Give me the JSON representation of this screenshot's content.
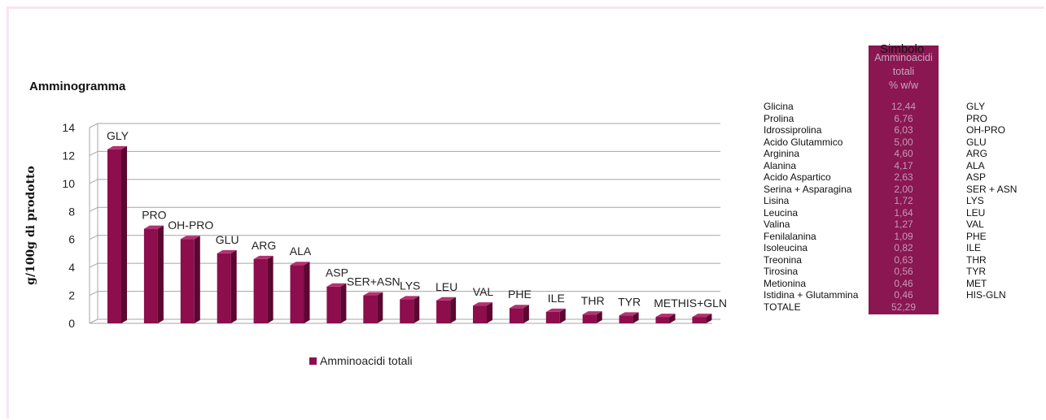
{
  "chart_data": {
    "type": "bar",
    "title": "Amminogramma",
    "ylabel": "g/100g di prodotto",
    "xlabel": "",
    "ylim": [
      0,
      14
    ],
    "yticks": [
      0,
      2,
      4,
      6,
      8,
      10,
      12,
      14
    ],
    "grid": true,
    "legend": "bottom",
    "categories": [
      "GLY",
      "PRO",
      "OH-PRO",
      "GLU",
      "ARG",
      "ALA",
      "ASP",
      "SER+ASN",
      "LYS",
      "LEU",
      "VAL",
      "PHE",
      "ILE",
      "THR",
      "TYR",
      "MET",
      "HIS+GLN"
    ],
    "series": [
      {
        "name": "Amminoacidi totali",
        "values": [
          12.44,
          6.76,
          6.03,
          5.0,
          4.6,
          4.17,
          2.63,
          2.0,
          1.72,
          1.64,
          1.27,
          1.09,
          0.82,
          0.63,
          0.56,
          0.46,
          0.46
        ]
      }
    ],
    "colors": {
      "bar_front": "#8d0d4d",
      "bar_side": "#5b0731",
      "bar_top": "#b3326f",
      "grid": "#a5a5a5"
    }
  },
  "table": {
    "value_header": [
      "Amminoacidi",
      "totali",
      "% w/w"
    ],
    "symbol_header": "Simbolo",
    "header_bg": "#8a1652",
    "rows": [
      {
        "name": "Glicina",
        "value": "12,44",
        "symbol": "GLY"
      },
      {
        "name": "Prolina",
        "value": "6,76",
        "symbol": "PRO"
      },
      {
        "name": "Idrossiprolina",
        "value": "6,03",
        "symbol": "OH-PRO"
      },
      {
        "name": "Acido Glutammico",
        "value": "5,00",
        "symbol": "GLU"
      },
      {
        "name": "Arginina",
        "value": "4,60",
        "symbol": "ARG"
      },
      {
        "name": "Alanina",
        "value": "4,17",
        "symbol": "ALA"
      },
      {
        "name": "Acido Aspartico",
        "value": "2,63",
        "symbol": "ASP"
      },
      {
        "name": "Serina + Asparagina",
        "value": "2,00",
        "symbol": "SER + ASN"
      },
      {
        "name": "Lisina",
        "value": "1,72",
        "symbol": "LYS"
      },
      {
        "name": "Leucina",
        "value": "1,64",
        "symbol": "LEU"
      },
      {
        "name": "Valina",
        "value": "1,27",
        "symbol": "VAL"
      },
      {
        "name": "Fenilalanina",
        "value": "1,09",
        "symbol": "PHE"
      },
      {
        "name": "Isoleucina",
        "value": "0,82",
        "symbol": "ILE"
      },
      {
        "name": "Treonina",
        "value": "0,63",
        "symbol": "THR"
      },
      {
        "name": "Tirosina",
        "value": "0,56",
        "symbol": "TYR"
      },
      {
        "name": "Metionina",
        "value": "0,46",
        "symbol": "MET"
      },
      {
        "name": "Istidina + Glutammina",
        "value": "0,46",
        "symbol": "HIS-GLN"
      }
    ],
    "total": {
      "name": "TOTALE",
      "value": "52,29"
    }
  }
}
